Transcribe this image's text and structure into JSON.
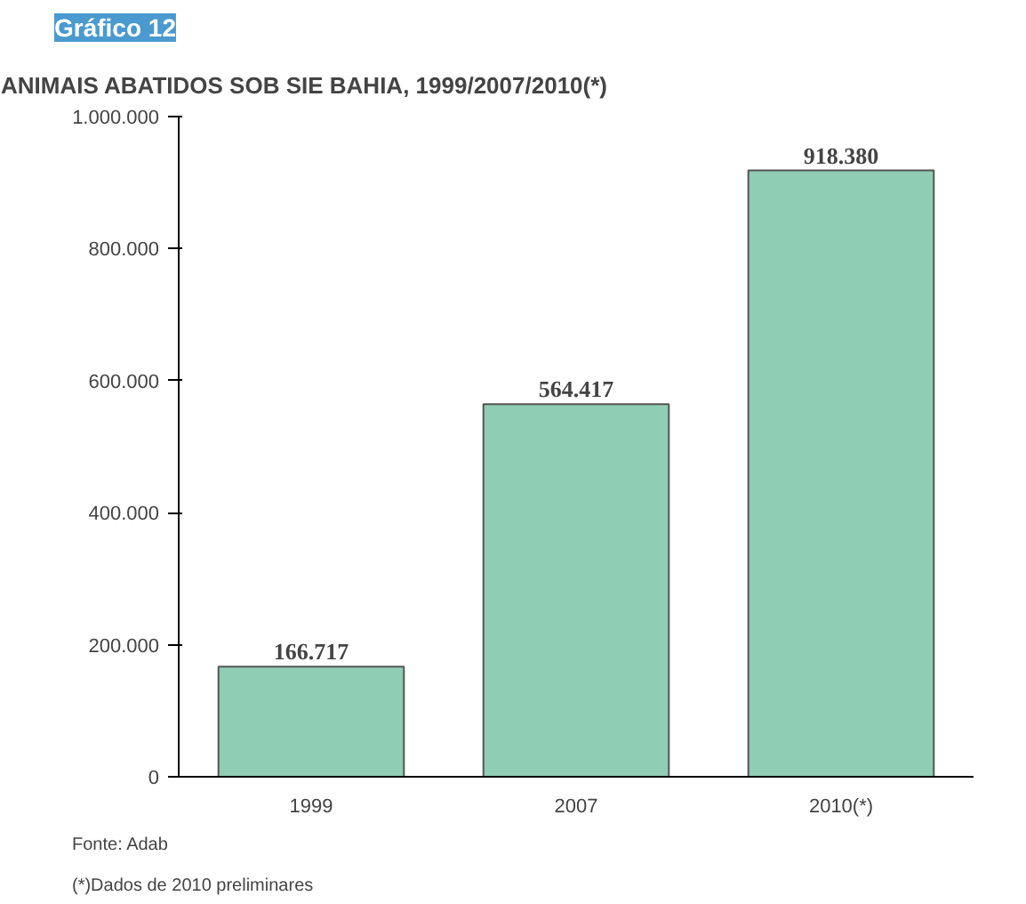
{
  "chart_data": {
    "type": "bar",
    "title": "ANIMAIS ABATIDOS SOB SIE BAHIA, 1999/2007/2010(*)",
    "categories": [
      "1999",
      "2007",
      "2010(*)"
    ],
    "values": [
      166717,
      564417,
      918380
    ],
    "value_labels": [
      "166.717",
      "564.417",
      "918.380"
    ],
    "color": "#8fcdb4",
    "ylim": [
      0,
      1000000
    ],
    "yticks": [
      {
        "value": 0,
        "label": "0"
      },
      {
        "value": 200000,
        "label": "200.000"
      },
      {
        "value": 400000,
        "label": "400.000"
      },
      {
        "value": 600000,
        "label": "600.000"
      },
      {
        "value": 800000,
        "label": "800.000"
      },
      {
        "value": 1000000,
        "label": "1.000.000"
      }
    ],
    "grid": false,
    "annotations": [
      "Gráfico 12",
      "Fonte: Adab",
      "(*)Dados de 2010 preliminares"
    ]
  }
}
